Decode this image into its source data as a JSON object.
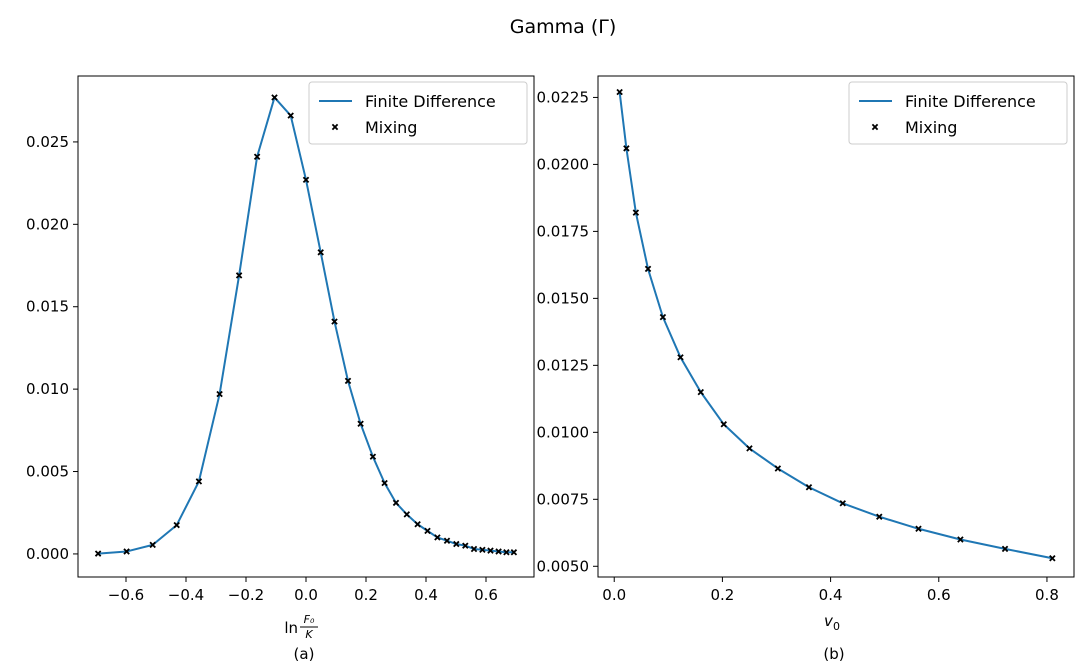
{
  "suptitle": "Gamma (Γ)",
  "colors": {
    "line": "#1f77b4",
    "marker": "#000000"
  },
  "chart_data": [
    {
      "type": "line",
      "panel_caption": "(a)",
      "xlabel": {
        "prefix": "ln",
        "numerator": "F₀",
        "denominator": "K"
      },
      "ylabel": "",
      "xlim": [
        -0.76,
        0.76
      ],
      "ylim": [
        -0.0014,
        0.029
      ],
      "xticks": [
        -0.6,
        -0.4,
        -0.2,
        0.0,
        0.2,
        0.4,
        0.6
      ],
      "xtick_labels": [
        "−0.6",
        "−0.4",
        "−0.2",
        "0.0",
        "0.2",
        "0.4",
        "0.6"
      ],
      "yticks": [
        0.0,
        0.005,
        0.01,
        0.015,
        0.02,
        0.025
      ],
      "ytick_labels": [
        "0.000",
        "0.005",
        "0.010",
        "0.015",
        "0.020",
        "0.025"
      ],
      "legend": {
        "placement": "upper right",
        "entries": [
          "Finite Difference",
          "Mixing"
        ]
      },
      "grid": false,
      "series": [
        {
          "name": "Finite Difference",
          "kind": "line",
          "x": [
            -0.693,
            -0.598,
            -0.511,
            -0.431,
            -0.357,
            -0.288,
            -0.223,
            -0.163,
            -0.105,
            -0.051,
            0.0,
            0.049,
            0.095,
            0.14,
            0.182,
            0.223,
            0.262,
            0.3,
            0.336,
            0.372,
            0.405,
            0.438,
            0.47,
            0.501,
            0.531,
            0.56,
            0.588,
            0.615,
            0.642,
            0.668,
            0.693
          ],
          "y": [
            2e-05,
            0.00015,
            0.00055,
            0.00175,
            0.0044,
            0.0097,
            0.0169,
            0.0241,
            0.0277,
            0.0266,
            0.0227,
            0.0183,
            0.0141,
            0.0105,
            0.0079,
            0.0059,
            0.0043,
            0.0031,
            0.0024,
            0.0018,
            0.0014,
            0.001,
            0.0008,
            0.0006,
            0.0005,
            0.0003,
            0.00025,
            0.0002,
            0.00015,
            0.0001,
            0.0001
          ]
        },
        {
          "name": "Mixing",
          "kind": "scatter",
          "x": [
            -0.693,
            -0.598,
            -0.511,
            -0.431,
            -0.357,
            -0.288,
            -0.223,
            -0.163,
            -0.105,
            -0.051,
            0.0,
            0.049,
            0.095,
            0.14,
            0.182,
            0.223,
            0.262,
            0.3,
            0.336,
            0.372,
            0.405,
            0.438,
            0.47,
            0.501,
            0.531,
            0.56,
            0.588,
            0.615,
            0.642,
            0.668,
            0.693
          ],
          "y": [
            2e-05,
            0.00015,
            0.00055,
            0.00175,
            0.0044,
            0.0097,
            0.0169,
            0.0241,
            0.0277,
            0.0266,
            0.0227,
            0.0183,
            0.0141,
            0.0105,
            0.0079,
            0.0059,
            0.0043,
            0.0031,
            0.0024,
            0.0018,
            0.0014,
            0.001,
            0.0008,
            0.0006,
            0.0005,
            0.0003,
            0.00025,
            0.0002,
            0.00015,
            0.0001,
            0.0001
          ]
        }
      ]
    },
    {
      "type": "line",
      "panel_caption": "(b)",
      "xlabel": {
        "var": "v",
        "sub": "0"
      },
      "ylabel": "",
      "xlim": [
        -0.03,
        0.85
      ],
      "ylim": [
        0.0046,
        0.0233
      ],
      "xticks": [
        0.0,
        0.2,
        0.4,
        0.6,
        0.8
      ],
      "xtick_labels": [
        "0.0",
        "0.2",
        "0.4",
        "0.6",
        "0.8"
      ],
      "yticks": [
        0.005,
        0.0075,
        0.01,
        0.0125,
        0.015,
        0.0175,
        0.02,
        0.0225
      ],
      "ytick_labels": [
        "0.0050",
        "0.0075",
        "0.0100",
        "0.0125",
        "0.0150",
        "0.0175",
        "0.0200",
        "0.0225"
      ],
      "legend": {
        "placement": "upper right",
        "entries": [
          "Finite Difference",
          "Mixing"
        ]
      },
      "grid": false,
      "series": [
        {
          "name": "Finite Difference",
          "kind": "line",
          "x": [
            0.01,
            0.0225,
            0.04,
            0.0625,
            0.09,
            0.1225,
            0.16,
            0.2025,
            0.25,
            0.3025,
            0.36,
            0.4225,
            0.49,
            0.5625,
            0.64,
            0.7225,
            0.81
          ],
          "y": [
            0.0227,
            0.0206,
            0.0182,
            0.0161,
            0.0143,
            0.0128,
            0.0115,
            0.0103,
            0.0094,
            0.00865,
            0.00795,
            0.00735,
            0.00685,
            0.0064,
            0.006,
            0.00565,
            0.0053
          ]
        },
        {
          "name": "Mixing",
          "kind": "scatter",
          "x": [
            0.01,
            0.0225,
            0.04,
            0.0625,
            0.09,
            0.1225,
            0.16,
            0.2025,
            0.25,
            0.3025,
            0.36,
            0.4225,
            0.49,
            0.5625,
            0.64,
            0.7225,
            0.81
          ],
          "y": [
            0.0227,
            0.0206,
            0.0182,
            0.0161,
            0.0143,
            0.0128,
            0.0115,
            0.0103,
            0.0094,
            0.00865,
            0.00795,
            0.00735,
            0.00685,
            0.0064,
            0.006,
            0.00565,
            0.0053
          ]
        }
      ]
    }
  ]
}
